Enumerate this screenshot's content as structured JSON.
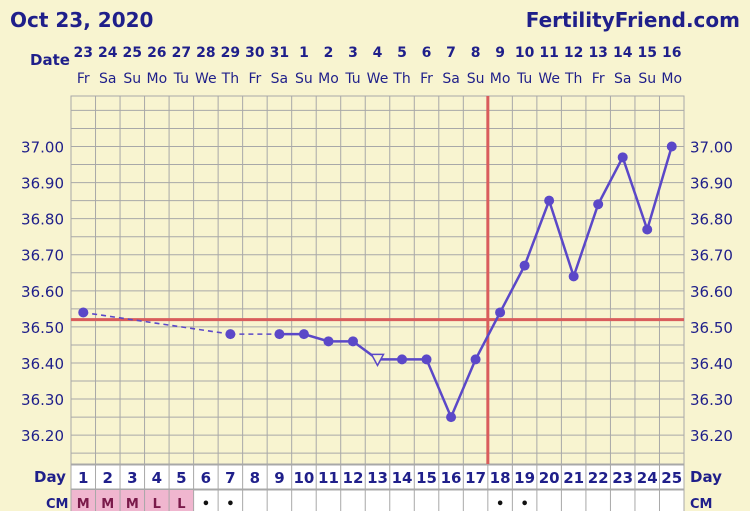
{
  "header": {
    "date": "Oct 23, 2020",
    "site": "FertilityFriend.com"
  },
  "chart_data": {
    "type": "line",
    "title": "",
    "row_labels": {
      "date": "Date",
      "day": "Day",
      "cm": "CM"
    },
    "dates": [
      "23",
      "24",
      "25",
      "26",
      "27",
      "28",
      "29",
      "30",
      "31",
      "1",
      "2",
      "3",
      "4",
      "5",
      "6",
      "7",
      "8",
      "9",
      "10",
      "11",
      "12",
      "13",
      "14",
      "15",
      "16"
    ],
    "weekdays": [
      "Fr",
      "Sa",
      "Su",
      "Mo",
      "Tu",
      "We",
      "Th",
      "Fr",
      "Sa",
      "Su",
      "Mo",
      "Tu",
      "We",
      "Th",
      "Fr",
      "Sa",
      "Su",
      "Mo",
      "Tu",
      "We",
      "Th",
      "Fr",
      "Sa",
      "Su",
      "Mo"
    ],
    "days": [
      1,
      2,
      3,
      4,
      5,
      6,
      7,
      8,
      9,
      10,
      11,
      12,
      13,
      14,
      15,
      16,
      17,
      18,
      19,
      20,
      21,
      22,
      23,
      24,
      25
    ],
    "cm": [
      "M",
      "M",
      "M",
      "L",
      "L",
      "•",
      "•",
      "",
      "",
      "",
      "",
      "",
      "",
      "",
      "",
      "",
      "",
      "•",
      "•",
      "",
      "",
      "",
      "",
      "",
      ""
    ],
    "cm_colors": {
      "M": "#f0b6cf",
      "L": "#f0b6cf",
      "text": "#7a1a4a"
    },
    "y_ticks": [
      "37.00",
      "36.90",
      "36.80",
      "36.70",
      "36.60",
      "36.50",
      "36.40",
      "36.30",
      "36.20"
    ],
    "ylim": [
      36.12,
      37.14
    ],
    "temperatures": [
      {
        "day": 1,
        "temp": 36.54,
        "marker": "dot"
      },
      {
        "day": 7,
        "temp": 36.48,
        "marker": "dot"
      },
      {
        "day": 9,
        "temp": 36.48,
        "marker": "dot"
      },
      {
        "day": 10,
        "temp": 36.48,
        "marker": "dot"
      },
      {
        "day": 11,
        "temp": 36.46,
        "marker": "dot"
      },
      {
        "day": 12,
        "temp": 36.46,
        "marker": "dot"
      },
      {
        "day": 13,
        "temp": 36.41,
        "marker": "triangle"
      },
      {
        "day": 14,
        "temp": 36.41,
        "marker": "dot"
      },
      {
        "day": 15,
        "temp": 36.41,
        "marker": "dot"
      },
      {
        "day": 16,
        "temp": 36.25,
        "marker": "dot"
      },
      {
        "day": 17,
        "temp": 36.41,
        "marker": "dot"
      },
      {
        "day": 18,
        "temp": 36.54,
        "marker": "dot"
      },
      {
        "day": 19,
        "temp": 36.67,
        "marker": "dot"
      },
      {
        "day": 20,
        "temp": 36.85,
        "marker": "dot"
      },
      {
        "day": 21,
        "temp": 36.64,
        "marker": "dot"
      },
      {
        "day": 22,
        "temp": 36.84,
        "marker": "dot"
      },
      {
        "day": 23,
        "temp": 36.97,
        "marker": "dot"
      },
      {
        "day": 24,
        "temp": 36.77,
        "marker": "dot"
      },
      {
        "day": 25,
        "temp": 37.0,
        "marker": "dot"
      }
    ],
    "segments": [
      {
        "from": 1,
        "to": 7,
        "style": "dashed"
      },
      {
        "from": 7,
        "to": 9,
        "style": "dashed"
      },
      {
        "from": 9,
        "to": 25,
        "style": "solid"
      }
    ],
    "coverline": 36.52,
    "ovulation_day": 17,
    "colors": {
      "line": "#5b48c8",
      "marker": "#5b48c8",
      "reference": "#d95c5c",
      "text": "#1f1f8a",
      "grid": "#a8a8a8",
      "background": "#f8f4d0"
    },
    "grid": true
  }
}
